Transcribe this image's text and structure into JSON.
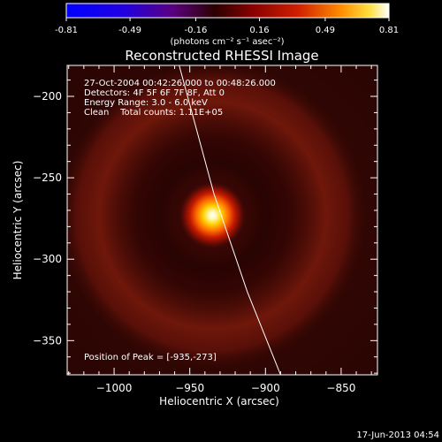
{
  "colorbar": {
    "tick_labels": [
      "-0.81",
      "-0.49",
      "-0.16",
      "0.16",
      "0.49",
      "0.81"
    ],
    "tick_values": [
      -0.81,
      -0.49,
      -0.16,
      0.16,
      0.49,
      0.81
    ],
    "range": [
      -0.81,
      0.81
    ],
    "unit_label": "(photons cm⁻² s⁻¹ asec⁻²)"
  },
  "chart_data": {
    "type": "heatmap",
    "title": "Reconstructed RHESSI Image",
    "xlabel": "Heliocentric X (arcsec)",
    "ylabel": "Heliocentric Y (arcsec)",
    "xlim": [
      -1031,
      -826
    ],
    "ylim": [
      -371,
      -181
    ],
    "x_ticks": [
      -1000,
      -950,
      -900,
      -850
    ],
    "x_tick_labels": [
      "−1000",
      "−950",
      "−900",
      "−850"
    ],
    "y_ticks": [
      -200,
      -250,
      -300,
      -350
    ],
    "y_tick_labels": [
      "−200",
      "−250",
      "−300",
      "−350"
    ],
    "peak": {
      "x": -935,
      "y": -273,
      "value": 0.81
    },
    "ring": {
      "center_x": -935,
      "center_y": -273,
      "radius_arcsec": 78,
      "value": 0.22
    },
    "limb": [
      {
        "x": -957,
        "y": -181
      },
      {
        "x": -934,
        "y": -260
      },
      {
        "x": -912,
        "y": -320
      },
      {
        "x": -890,
        "y": -371
      }
    ],
    "info_lines": [
      "27-Oct-2004 00:42:26.000 to 00:48:26.000",
      "Detectors: 4F 5F 6F 7F 8F, Att 0",
      "Energy Range: 3.0 - 6.0 keV",
      "Clean    Total counts: 1.11E+05"
    ],
    "peak_label": "Position of Peak = [-935,-273]"
  },
  "footer": {
    "timestamp": "17-Jun-2013 04:54"
  }
}
